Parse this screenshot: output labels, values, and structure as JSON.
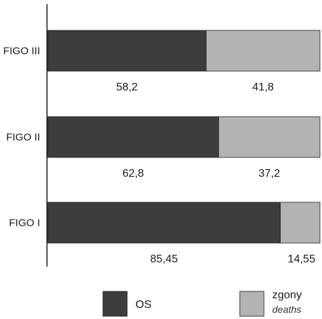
{
  "chart_data": {
    "type": "bar",
    "orientation": "horizontal",
    "stacked": true,
    "categories": [
      "FIGO III",
      "FIGO II",
      "FIGO I"
    ],
    "series": [
      {
        "name": "OS",
        "values": [
          58.2,
          62.8,
          85.45
        ],
        "labels": [
          "58,2",
          "62,8",
          "85,45"
        ]
      },
      {
        "name": "zgony",
        "name_sub": "deaths",
        "values": [
          41.8,
          37.2,
          14.55
        ],
        "labels": [
          "41,8",
          "37,2",
          "14,55"
        ]
      }
    ],
    "colors": [
      "#3d3d3d",
      "#b3b3b3"
    ],
    "xlim": [
      0,
      100
    ],
    "legend_position": "bottom"
  }
}
